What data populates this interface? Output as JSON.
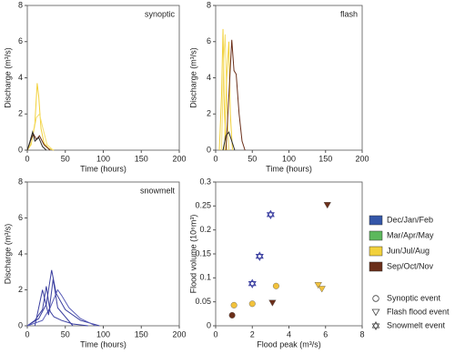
{
  "chart_data": [
    {
      "type": "line",
      "title": "synoptic",
      "xlabel": "Time (hours)",
      "ylabel": "Discharge (m³/s)",
      "xlim": [
        0,
        200
      ],
      "ylim": [
        0,
        8
      ],
      "xticks": [
        0,
        50,
        100,
        150,
        200
      ],
      "yticks": [
        0,
        2,
        4,
        6,
        8
      ],
      "series": [
        {
          "color": "#f2d13c",
          "x": [
            0,
            5,
            10,
            13,
            15,
            18,
            22,
            28,
            35
          ],
          "values": [
            0,
            0.3,
            1.5,
            3.7,
            3.0,
            1.2,
            0.4,
            0.1,
            0
          ]
        },
        {
          "color": "#f5df70",
          "x": [
            0,
            6,
            12,
            16,
            20,
            26,
            34
          ],
          "values": [
            0,
            0.5,
            1.8,
            2.0,
            1.3,
            0.3,
            0
          ]
        },
        {
          "color": "#6b2f1a",
          "x": [
            0,
            4,
            8,
            12,
            16,
            22,
            30
          ],
          "values": [
            0,
            0.5,
            0.9,
            0.6,
            0.8,
            0.3,
            0
          ]
        },
        {
          "color": "#2a2a2a",
          "x": [
            0,
            3,
            7,
            10,
            15,
            20,
            25
          ],
          "values": [
            0,
            0.4,
            1.0,
            0.5,
            0.7,
            0.2,
            0
          ]
        }
      ]
    },
    {
      "type": "line",
      "title": "flash",
      "xlabel": "Time (hours)",
      "ylabel": "Discharge (m³/s)",
      "xlim": [
        0,
        200
      ],
      "ylim": [
        0,
        8
      ],
      "xticks": [
        0,
        50,
        100,
        150,
        200
      ],
      "yticks": [
        0,
        2,
        4,
        6,
        8
      ],
      "series": [
        {
          "color": "#f2d13c",
          "x": [
            5,
            8,
            10,
            12,
            15
          ],
          "values": [
            0,
            3,
            6.7,
            2,
            0
          ]
        },
        {
          "color": "#f5df70",
          "x": [
            8,
            11,
            13,
            15,
            18
          ],
          "values": [
            0,
            5,
            6.4,
            3,
            0
          ]
        },
        {
          "color": "#f2d13c",
          "x": [
            12,
            15,
            18,
            20,
            23
          ],
          "values": [
            0,
            4,
            6.0,
            2,
            0
          ]
        },
        {
          "color": "#6b2f1a",
          "x": [
            14,
            18,
            22,
            25,
            28,
            32,
            36,
            40
          ],
          "values": [
            0,
            3,
            6.1,
            4.4,
            4.2,
            2,
            0.5,
            0
          ]
        },
        {
          "color": "#2a2a2a",
          "x": [
            10,
            14,
            18,
            22,
            26
          ],
          "values": [
            0,
            0.8,
            1.0,
            0.5,
            0
          ]
        }
      ]
    },
    {
      "type": "line",
      "title": "snowmelt",
      "xlabel": "Time (hours)",
      "ylabel": "Discharge (m³/s)",
      "xlim": [
        0,
        200
      ],
      "ylim": [
        0,
        8
      ],
      "xticks": [
        0,
        50,
        100,
        150,
        200
      ],
      "yticks": [
        0,
        2,
        4,
        6,
        8
      ],
      "series": [
        {
          "color": "#3b3fa0",
          "x": [
            0,
            10,
            20,
            25,
            30,
            35,
            45,
            60,
            80
          ],
          "values": [
            0,
            0.3,
            0.9,
            2.2,
            0.8,
            0.5,
            0.3,
            0.1,
            0
          ]
        },
        {
          "color": "#3b3fa0",
          "x": [
            0,
            15,
            25,
            32,
            38,
            50,
            70,
            95
          ],
          "values": [
            0,
            0.4,
            1.2,
            3.1,
            1.8,
            0.9,
            0.3,
            0
          ]
        },
        {
          "color": "#5a5eb8",
          "x": [
            0,
            20,
            30,
            40,
            45,
            55,
            70,
            90
          ],
          "values": [
            0,
            0.3,
            1.0,
            2.0,
            1.7,
            1.0,
            0.4,
            0
          ]
        },
        {
          "color": "#3b3fa0",
          "x": [
            10,
            20,
            28,
            34,
            40,
            60
          ],
          "values": [
            0,
            2.0,
            0.6,
            2.6,
            1.0,
            0
          ]
        }
      ]
    },
    {
      "type": "scatter",
      "xlabel": "Flood peak (m³/s)",
      "ylabel": "Flood volume (10⁶m³)",
      "xlim": [
        0,
        8
      ],
      "ylim": [
        0,
        0.3
      ],
      "xticks": [
        0,
        2,
        4,
        6,
        8
      ],
      "yticks": [
        0,
        0.05,
        0.1,
        0.15,
        0.2,
        0.25,
        0.3
      ],
      "series": [
        {
          "color": "#6b2f1a",
          "marker": "circle",
          "x": [
            0.9
          ],
          "values": [
            0.022
          ]
        },
        {
          "color": "#f2c23c",
          "marker": "circle",
          "x": [
            1.0,
            2.0,
            3.3
          ],
          "values": [
            0.043,
            0.046,
            0.083
          ]
        },
        {
          "color": "#6b2f1a",
          "marker": "triangle",
          "x": [
            3.1,
            6.1
          ],
          "values": [
            0.048,
            0.252
          ]
        },
        {
          "color": "#f2c23c",
          "marker": "triangle",
          "x": [
            5.6,
            5.8
          ],
          "values": [
            0.085,
            0.077
          ]
        },
        {
          "color": "#3b3fa0",
          "marker": "star",
          "x": [
            2.0,
            2.4,
            3.0
          ],
          "values": [
            0.088,
            0.145,
            0.232
          ]
        }
      ],
      "legend": {
        "seasons": [
          {
            "label": "Dec/Jan/Feb",
            "color": "#3456a8"
          },
          {
            "label": "Mar/Apr/May",
            "color": "#5cb85c"
          },
          {
            "label": "Jun/Jul/Aug",
            "color": "#f2d13c"
          },
          {
            "label": "Sep/Oct/Nov",
            "color": "#6b2f1a"
          }
        ],
        "events": [
          {
            "label": "Synoptic event",
            "marker": "circle"
          },
          {
            "label": "Flash flood event",
            "marker": "triangle"
          },
          {
            "label": "Snowmelt event",
            "marker": "star"
          }
        ]
      }
    }
  ]
}
